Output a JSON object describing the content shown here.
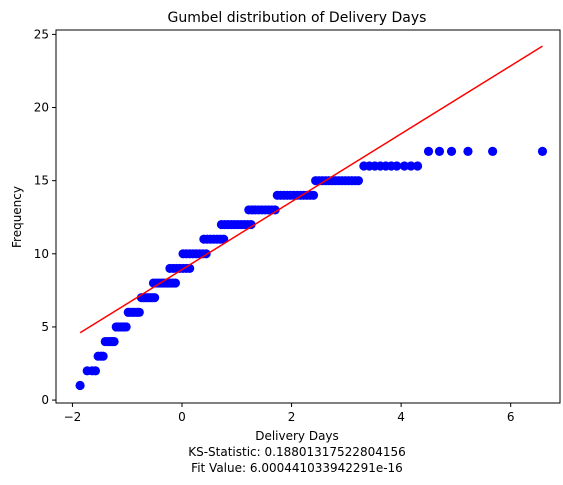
{
  "chart_data": {
    "type": "scatter",
    "title": "Gumbel distribution  of Delivery Days",
    "xlabel": "Delivery Days",
    "ylabel": "Frequency",
    "footer_lines": [
      "KS-Statistic: 0.18801317522804156",
      "Fit Value: 6.000441033942291e-16"
    ],
    "xlim": [
      -2.3,
      6.9
    ],
    "ylim": [
      -0.2,
      25.3
    ],
    "xticks": [
      -2,
      0,
      2,
      4,
      6
    ],
    "yticks": [
      0,
      5,
      10,
      15,
      20,
      25
    ],
    "point_color": "#0000ff",
    "line_color": "#ff0000",
    "fit_line": {
      "x": [
        -1.86,
        6.58
      ],
      "y": [
        4.6,
        24.2
      ]
    },
    "points": [
      {
        "x": -1.86,
        "y": 1
      },
      {
        "x": -1.73,
        "y": 2
      },
      {
        "x": -1.64,
        "y": 2
      },
      {
        "x": -1.58,
        "y": 2
      },
      {
        "x": -1.53,
        "y": 3
      },
      {
        "x": -1.48,
        "y": 3
      },
      {
        "x": -1.44,
        "y": 3
      },
      {
        "x": -1.4,
        "y": 4
      },
      {
        "x": -1.35,
        "y": 4
      },
      {
        "x": -1.31,
        "y": 4
      },
      {
        "x": -1.27,
        "y": 4
      },
      {
        "x": -1.24,
        "y": 4
      },
      {
        "x": -1.2,
        "y": 5
      },
      {
        "x": -1.16,
        "y": 5
      },
      {
        "x": -1.13,
        "y": 5
      },
      {
        "x": -1.09,
        "y": 5
      },
      {
        "x": -1.06,
        "y": 5
      },
      {
        "x": -1.02,
        "y": 5
      },
      {
        "x": -0.98,
        "y": 6
      },
      {
        "x": -0.95,
        "y": 6
      },
      {
        "x": -0.91,
        "y": 6
      },
      {
        "x": -0.88,
        "y": 6
      },
      {
        "x": -0.84,
        "y": 6
      },
      {
        "x": -0.81,
        "y": 6
      },
      {
        "x": -0.78,
        "y": 6
      },
      {
        "x": -0.74,
        "y": 7
      },
      {
        "x": -0.7,
        "y": 7
      },
      {
        "x": -0.66,
        "y": 7
      },
      {
        "x": -0.62,
        "y": 7
      },
      {
        "x": -0.58,
        "y": 7
      },
      {
        "x": -0.54,
        "y": 7
      },
      {
        "x": -0.5,
        "y": 7
      },
      {
        "x": -0.52,
        "y": 8
      },
      {
        "x": -0.47,
        "y": 8
      },
      {
        "x": -0.42,
        "y": 8
      },
      {
        "x": -0.37,
        "y": 8
      },
      {
        "x": -0.32,
        "y": 8
      },
      {
        "x": -0.27,
        "y": 8
      },
      {
        "x": -0.22,
        "y": 8
      },
      {
        "x": -0.17,
        "y": 8
      },
      {
        "x": -0.12,
        "y": 8
      },
      {
        "x": -0.22,
        "y": 9
      },
      {
        "x": -0.16,
        "y": 9
      },
      {
        "x": -0.1,
        "y": 9
      },
      {
        "x": -0.04,
        "y": 9
      },
      {
        "x": 0.02,
        "y": 9
      },
      {
        "x": 0.08,
        "y": 9
      },
      {
        "x": 0.14,
        "y": 9
      },
      {
        "x": 0.02,
        "y": 10
      },
      {
        "x": 0.08,
        "y": 10
      },
      {
        "x": 0.14,
        "y": 10
      },
      {
        "x": 0.2,
        "y": 10
      },
      {
        "x": 0.26,
        "y": 10
      },
      {
        "x": 0.32,
        "y": 10
      },
      {
        "x": 0.38,
        "y": 10
      },
      {
        "x": 0.44,
        "y": 10
      },
      {
        "x": 0.4,
        "y": 11
      },
      {
        "x": 0.46,
        "y": 11
      },
      {
        "x": 0.52,
        "y": 11
      },
      {
        "x": 0.58,
        "y": 11
      },
      {
        "x": 0.64,
        "y": 11
      },
      {
        "x": 0.7,
        "y": 11
      },
      {
        "x": 0.76,
        "y": 11
      },
      {
        "x": 0.72,
        "y": 12
      },
      {
        "x": 0.78,
        "y": 12
      },
      {
        "x": 0.84,
        "y": 12
      },
      {
        "x": 0.9,
        "y": 12
      },
      {
        "x": 0.96,
        "y": 12
      },
      {
        "x": 1.02,
        "y": 12
      },
      {
        "x": 1.08,
        "y": 12
      },
      {
        "x": 1.14,
        "y": 12
      },
      {
        "x": 1.2,
        "y": 12
      },
      {
        "x": 1.26,
        "y": 12
      },
      {
        "x": 1.22,
        "y": 13
      },
      {
        "x": 1.28,
        "y": 13
      },
      {
        "x": 1.34,
        "y": 13
      },
      {
        "x": 1.4,
        "y": 13
      },
      {
        "x": 1.46,
        "y": 13
      },
      {
        "x": 1.52,
        "y": 13
      },
      {
        "x": 1.58,
        "y": 13
      },
      {
        "x": 1.64,
        "y": 13
      },
      {
        "x": 1.7,
        "y": 13
      },
      {
        "x": 1.74,
        "y": 14
      },
      {
        "x": 1.8,
        "y": 14
      },
      {
        "x": 1.86,
        "y": 14
      },
      {
        "x": 1.92,
        "y": 14
      },
      {
        "x": 1.98,
        "y": 14
      },
      {
        "x": 2.04,
        "y": 14
      },
      {
        "x": 2.1,
        "y": 14
      },
      {
        "x": 2.16,
        "y": 14
      },
      {
        "x": 2.22,
        "y": 14
      },
      {
        "x": 2.28,
        "y": 14
      },
      {
        "x": 2.34,
        "y": 14
      },
      {
        "x": 2.4,
        "y": 14
      },
      {
        "x": 2.44,
        "y": 15
      },
      {
        "x": 2.5,
        "y": 15
      },
      {
        "x": 2.56,
        "y": 15
      },
      {
        "x": 2.62,
        "y": 15
      },
      {
        "x": 2.68,
        "y": 15
      },
      {
        "x": 2.74,
        "y": 15
      },
      {
        "x": 2.8,
        "y": 15
      },
      {
        "x": 2.86,
        "y": 15
      },
      {
        "x": 2.92,
        "y": 15
      },
      {
        "x": 2.98,
        "y": 15
      },
      {
        "x": 3.04,
        "y": 15
      },
      {
        "x": 3.1,
        "y": 15
      },
      {
        "x": 3.16,
        "y": 15
      },
      {
        "x": 3.22,
        "y": 15
      },
      {
        "x": 3.32,
        "y": 16
      },
      {
        "x": 3.42,
        "y": 16
      },
      {
        "x": 3.52,
        "y": 16
      },
      {
        "x": 3.62,
        "y": 16
      },
      {
        "x": 3.72,
        "y": 16
      },
      {
        "x": 3.82,
        "y": 16
      },
      {
        "x": 3.92,
        "y": 16
      },
      {
        "x": 4.06,
        "y": 16
      },
      {
        "x": 4.18,
        "y": 16
      },
      {
        "x": 4.3,
        "y": 16
      },
      {
        "x": 4.5,
        "y": 17
      },
      {
        "x": 4.7,
        "y": 17
      },
      {
        "x": 4.92,
        "y": 17
      },
      {
        "x": 5.22,
        "y": 17
      },
      {
        "x": 5.67,
        "y": 17
      },
      {
        "x": 6.58,
        "y": 17
      }
    ]
  }
}
